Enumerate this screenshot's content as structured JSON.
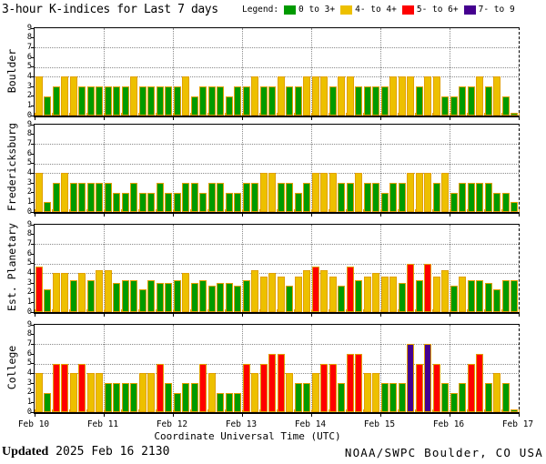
{
  "title": "3-hour K-indices for Last 7 days",
  "legend": {
    "label": "Legend:",
    "items": [
      {
        "label": "0 to 3+",
        "color": "#009A00",
        "k_min": 0
      },
      {
        "label": "4- to 4+",
        "color": "#EDC000",
        "k_min": 3.67
      },
      {
        "label": "5- to 6+",
        "color": "#FE0000",
        "k_min": 4.67
      },
      {
        "label": "7- to 9",
        "color": "#45008F",
        "k_min": 6.67
      }
    ]
  },
  "chart_data": {
    "type": "bar",
    "title": "3-hour K-indices for Last 7 days",
    "ylim": [
      0,
      9
    ],
    "y_tick_labels": [
      "0",
      "1",
      "2",
      "3",
      "4",
      "5",
      "6",
      "7",
      "8",
      "9"
    ],
    "grid_levels": [
      4,
      5,
      7
    ],
    "bars_per_day": 8,
    "bar_outline_color": "#E2A000",
    "x_axis": {
      "title": "Coordinate Universal Time (UTC)",
      "day_labels": [
        "Feb 10",
        "Feb 11",
        "Feb 12",
        "Feb 13",
        "Feb 14",
        "Feb 15",
        "Feb 16",
        "Feb 17"
      ]
    },
    "panels": [
      {
        "station": "Boulder",
        "k_values": [
          4,
          2,
          3,
          4,
          4,
          3,
          3,
          3,
          3,
          3,
          3,
          4,
          3,
          3,
          3,
          3,
          3,
          4,
          2,
          3,
          3,
          3,
          2,
          3,
          3,
          4,
          3,
          3,
          4,
          3,
          3,
          4,
          4,
          4,
          3,
          4,
          4,
          3,
          3,
          3,
          3,
          4,
          4,
          4,
          3,
          4,
          4,
          2,
          2,
          3,
          3,
          4,
          3,
          4,
          2,
          0.3
        ]
      },
      {
        "station": "Fredericksburg",
        "k_values": [
          4,
          1,
          3,
          4,
          3,
          3,
          3,
          3,
          3,
          2,
          2,
          3,
          2,
          2,
          3,
          2,
          2,
          3,
          3,
          2,
          3,
          3,
          2,
          2,
          3,
          3,
          4,
          4,
          3,
          3,
          2,
          3,
          4,
          4,
          4,
          3,
          3,
          4,
          3,
          3,
          2,
          3,
          3,
          4,
          4,
          4,
          3,
          4,
          2,
          3,
          3,
          3,
          3,
          2,
          2,
          1
        ]
      },
      {
        "station": "Est. Planetary",
        "k_values": [
          4.7,
          2.3,
          4,
          4,
          3.3,
          4,
          3.3,
          4.3,
          4.3,
          3,
          3.3,
          3.3,
          2.3,
          3.3,
          3,
          3,
          3.3,
          4,
          3,
          3.3,
          2.7,
          3,
          3,
          2.7,
          3.3,
          4.3,
          3.7,
          4,
          3.7,
          2.7,
          3.7,
          4.3,
          4.7,
          4.3,
          3.7,
          2.7,
          4.7,
          3.3,
          3.7,
          4,
          3.7,
          3.7,
          3,
          5,
          3.3,
          5,
          3.7,
          4.3,
          2.7,
          3.7,
          3.3,
          3.3,
          3,
          2.3,
          3.3,
          3.3
        ]
      },
      {
        "station": "College",
        "k_values": [
          4,
          2,
          5,
          5,
          4,
          5,
          4,
          4,
          3,
          3,
          3,
          3,
          4,
          4,
          5,
          3,
          2,
          3,
          3,
          5,
          4,
          2,
          2,
          2,
          5,
          4,
          5,
          6,
          6,
          4,
          3,
          3,
          4,
          5,
          5,
          3,
          6,
          6,
          4,
          4,
          3,
          3,
          3,
          7,
          5,
          7,
          5,
          3,
          2,
          3,
          5,
          6,
          3,
          4,
          3,
          0.3
        ]
      }
    ]
  },
  "footer": {
    "updated_label": "Updated",
    "updated_value": " 2025 Feb 16 2130",
    "credit": "NOAA/SWPC Boulder, CO USA"
  }
}
